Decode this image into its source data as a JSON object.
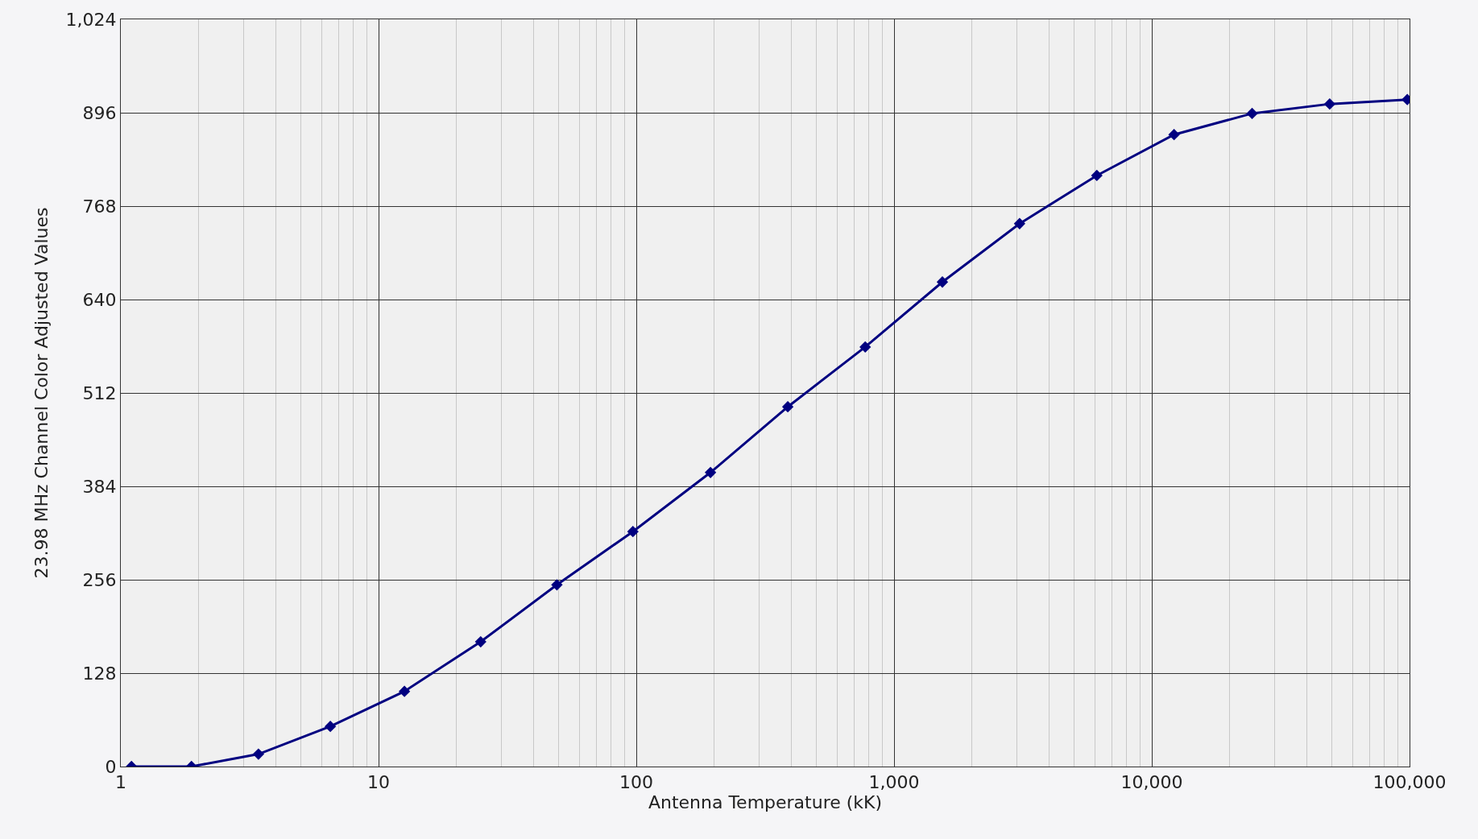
{
  "chart_data": {
    "type": "line",
    "xlabel": "Antenna Temperature (kK)",
    "ylabel": "23.98 MHz Channel Color Adjusted Values",
    "log": "x",
    "x": [
      1.1,
      1.88,
      3.42,
      6.5,
      12.6,
      24.9,
      49.2,
      97,
      194,
      387,
      773,
      1540,
      3070,
      6120,
      12200,
      24500,
      49000,
      98000
    ],
    "series": [
      {
        "color": "#000080",
        "values": [
          0,
          0,
          17,
          55,
          103,
          171,
          249,
          322,
          403,
          493,
          575,
          664,
          744,
          810,
          866,
          895,
          908,
          914
        ]
      }
    ],
    "xlim": [
      1,
      100000
    ],
    "xticks": [
      1,
      10,
      100,
      {
        "value": 1000,
        "label": "1,000"
      },
      {
        "value": 10000,
        "label": "10,000"
      },
      {
        "value": 100000,
        "label": "100,000"
      }
    ],
    "ylim": [
      0,
      1024
    ],
    "yticks": [
      0,
      128,
      256,
      384,
      512,
      640,
      768,
      896,
      {
        "value": 1024,
        "label": "1,024"
      }
    ],
    "grid": true,
    "marker": "diamond",
    "line_style": "solid"
  }
}
